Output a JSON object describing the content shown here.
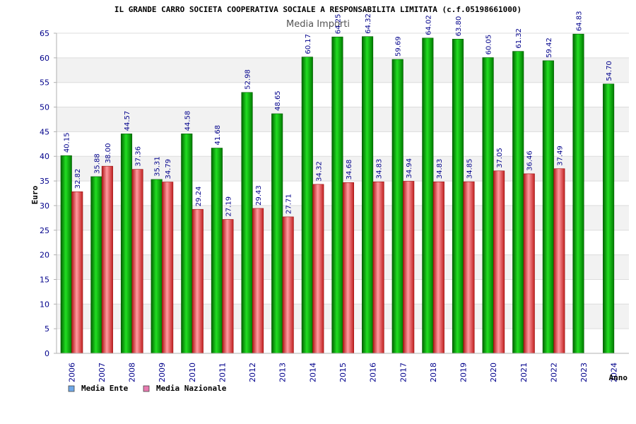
{
  "chart_data": {
    "type": "bar",
    "title": "IL GRANDE CARRO SOCIETA COOPERATIVA SOCIALE A RESPONSABILITA LIMITATA (c.f.05198661000)",
    "subtitle": "Media Importi",
    "ylabel": "Euro",
    "xlabel": "Anno",
    "ylim": [
      0,
      65
    ],
    "yticks": [
      "0",
      "5",
      "10",
      "15",
      "20",
      "25",
      "30",
      "35",
      "40",
      "45",
      "50",
      "55",
      "60",
      "65"
    ],
    "grid": "horizontal bands",
    "legend_position": "bottom-left",
    "categories": [
      "2006",
      "2007",
      "2008",
      "2009",
      "2010",
      "2011",
      "2012",
      "2013",
      "2014",
      "2015",
      "2016",
      "2017",
      "2018",
      "2019",
      "2020",
      "2021",
      "2022",
      "2023",
      "2024"
    ],
    "series": [
      {
        "name": "Media Ente",
        "color": "#00b000",
        "legend_color": "#6fa8e8",
        "values": [
          40.15,
          35.88,
          44.57,
          35.31,
          44.58,
          41.68,
          52.98,
          48.65,
          60.17,
          64.25,
          64.32,
          59.69,
          64.02,
          63.8,
          60.05,
          61.32,
          59.42,
          64.83,
          54.7
        ],
        "labels": [
          "40.15",
          "35.88",
          "44.57",
          "35.31",
          "44.58",
          "41.68",
          "52.98",
          "48.65",
          "60.17",
          "64.25",
          "64.32",
          "59.69",
          "64.02",
          "63.80",
          "60.05",
          "61.32",
          "59.42",
          "64.83",
          "54.70"
        ]
      },
      {
        "name": "Media Nazionale",
        "color": "#e03a3a",
        "legend_color": "#e87ab0",
        "values": [
          32.82,
          38.0,
          37.36,
          34.79,
          29.24,
          27.19,
          29.43,
          27.71,
          34.32,
          34.68,
          34.83,
          34.94,
          34.83,
          34.85,
          37.05,
          36.46,
          37.49,
          null,
          null
        ],
        "labels": [
          "32.82",
          "38.00",
          "37.36",
          "34.79",
          "29.24",
          "27.19",
          "29.43",
          "27.71",
          "34.32",
          "34.68",
          "34.83",
          "34.94",
          "34.83",
          "34.85",
          "37.05",
          "36.46",
          "37.49",
          null,
          null
        ]
      }
    ]
  }
}
